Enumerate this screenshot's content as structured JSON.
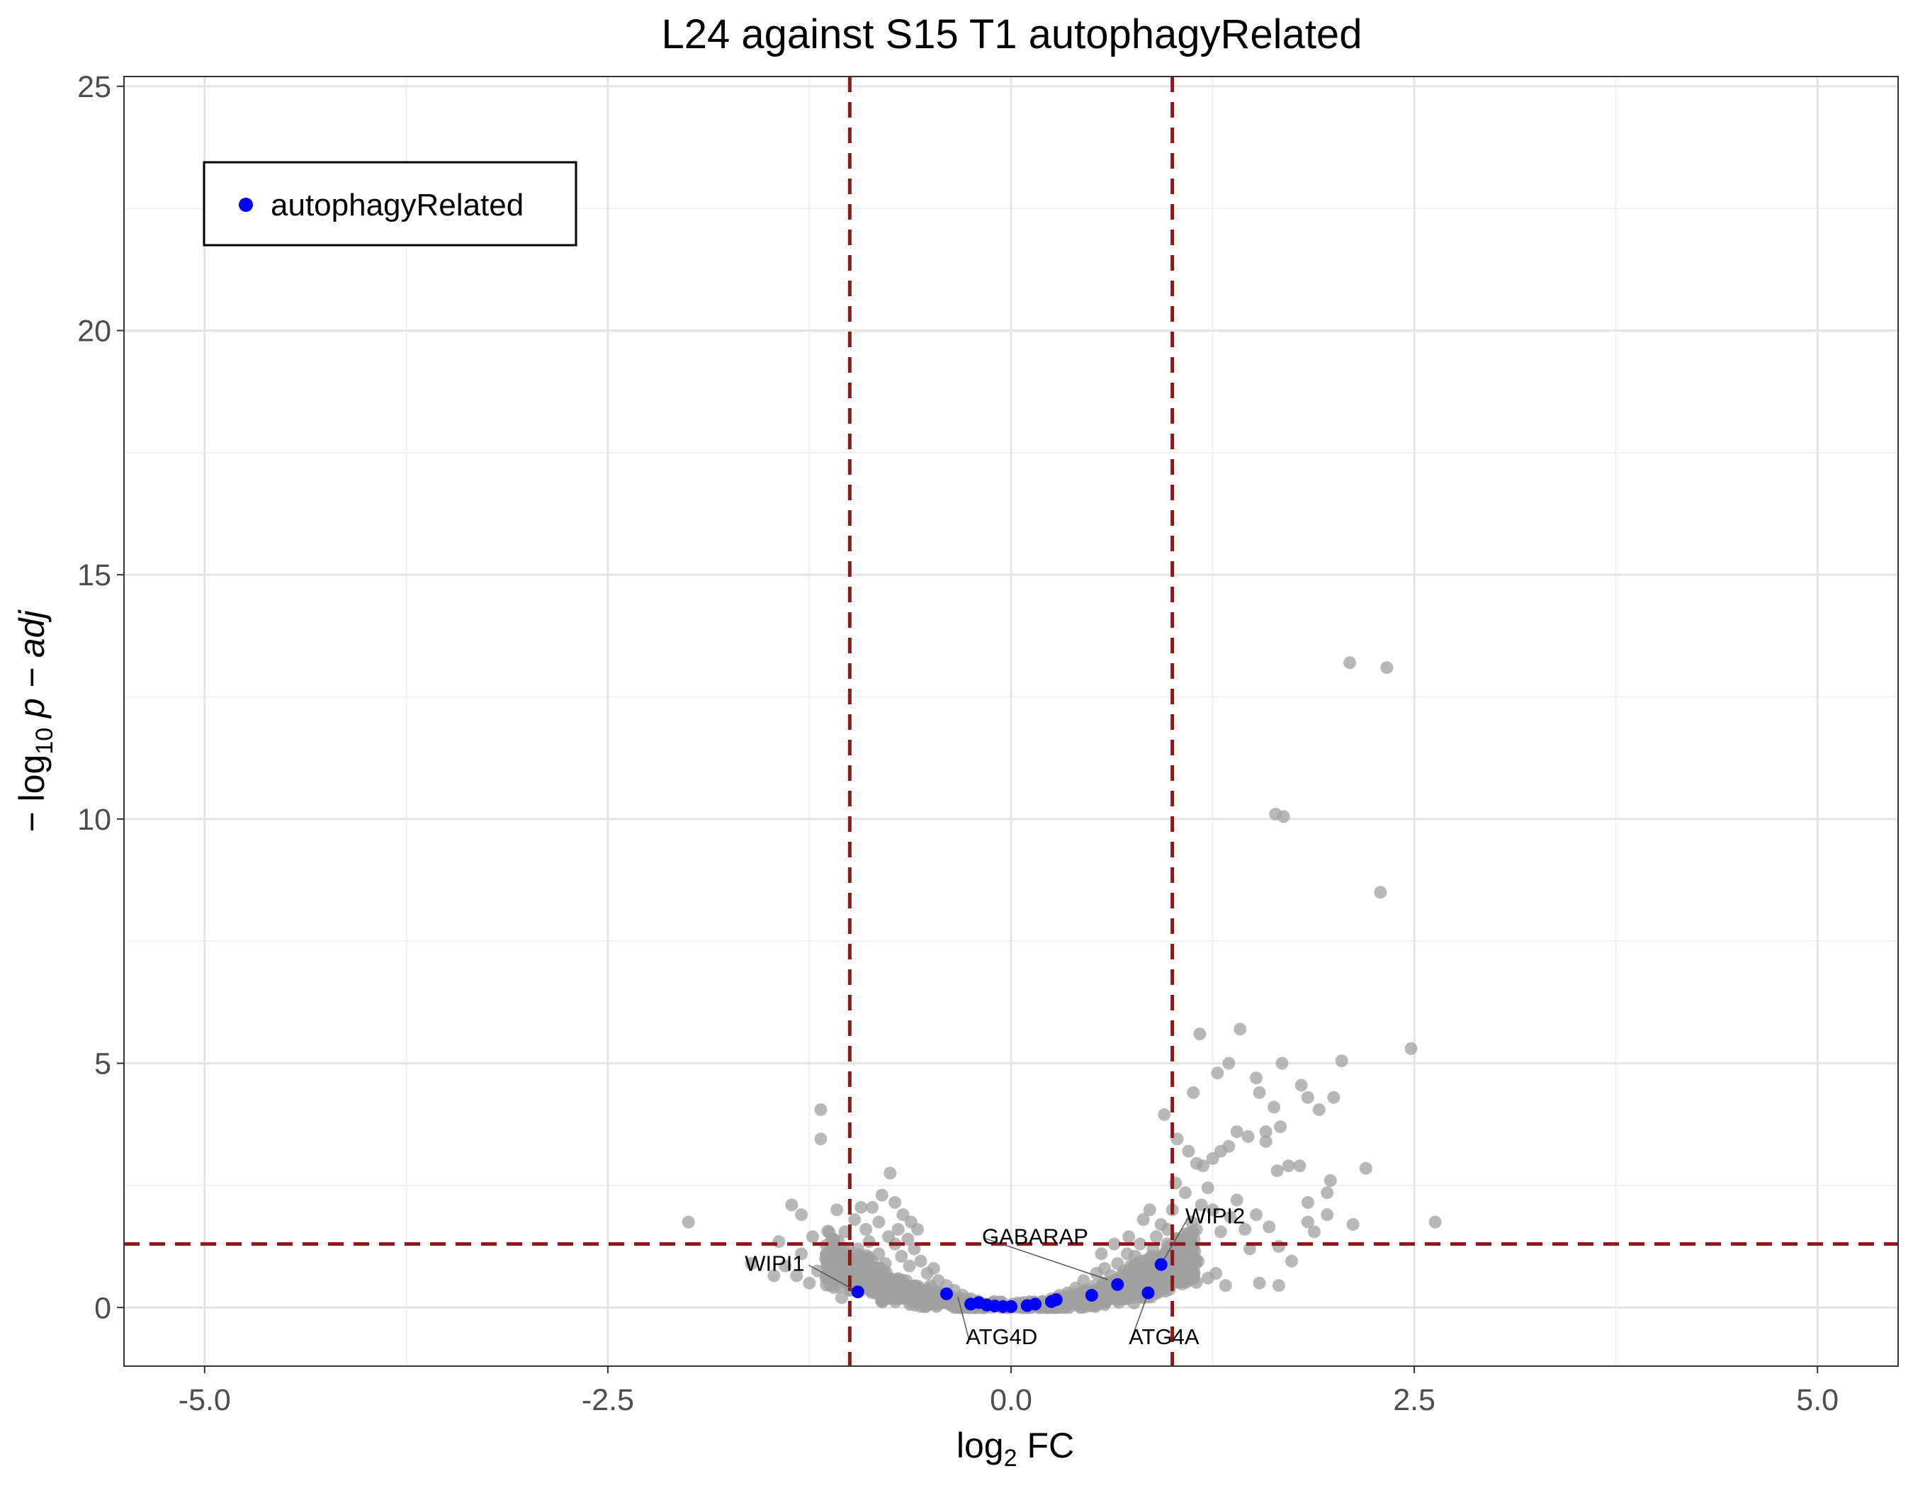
{
  "chart_data": {
    "type": "scatter",
    "title": "L24 against S15 T1 autophagyRelated",
    "xlabel": {
      "prefix": "log",
      "sub": "2",
      "suffix": " FC"
    },
    "ylabel": {
      "prefix": "− log",
      "sub": "10",
      "italic": " p − adj"
    },
    "xlim": [
      -5.5,
      5.5
    ],
    "ylim": [
      -1.2,
      25.2
    ],
    "xticks": [
      -5,
      -2.5,
      0,
      2.5,
      5
    ],
    "xtick_labels": [
      "-5.0",
      "-2.5",
      "0.0",
      "2.5",
      "5.0"
    ],
    "yticks": [
      0,
      5,
      10,
      15,
      20,
      25
    ],
    "ytick_labels": [
      "0",
      "5",
      "10",
      "15",
      "20",
      "25"
    ],
    "grid": true,
    "thresholds": {
      "fc_cutoffs": [
        -1,
        1
      ],
      "padj_cutoff": 1.3,
      "line_color": "#8b1a1a"
    },
    "background_color": "#a0a0a0",
    "highlight_color": "#0000ff",
    "legend": {
      "position": "top-left",
      "label": "autophagyRelated"
    },
    "background_points": [
      [
        2.1,
        13.2
      ],
      [
        2.33,
        13.1
      ],
      [
        1.64,
        10.1
      ],
      [
        1.69,
        10.05
      ],
      [
        2.29,
        8.5
      ],
      [
        1.17,
        5.6
      ],
      [
        1.42,
        5.7
      ],
      [
        1.35,
        5.0
      ],
      [
        1.28,
        4.8
      ],
      [
        1.13,
        4.4
      ],
      [
        1.52,
        4.7
      ],
      [
        1.68,
        5.0
      ],
      [
        1.8,
        4.55
      ],
      [
        1.84,
        4.3
      ],
      [
        1.91,
        4.05
      ],
      [
        2.0,
        4.3
      ],
      [
        2.05,
        5.05
      ],
      [
        2.48,
        5.3
      ],
      [
        1.54,
        4.4
      ],
      [
        1.63,
        4.1
      ],
      [
        1.67,
        3.7
      ],
      [
        1.58,
        3.4
      ],
      [
        1.47,
        3.5
      ],
      [
        1.4,
        3.6
      ],
      [
        1.35,
        3.3
      ],
      [
        1.3,
        3.2
      ],
      [
        1.25,
        3.05
      ],
      [
        1.15,
        2.95
      ],
      [
        1.19,
        2.9
      ],
      [
        1.1,
        3.2
      ],
      [
        1.03,
        3.45
      ],
      [
        0.95,
        3.95
      ],
      [
        1.58,
        3.6
      ],
      [
        1.65,
        2.8
      ],
      [
        1.72,
        2.9
      ],
      [
        1.79,
        2.9
      ],
      [
        1.98,
        2.6
      ],
      [
        1.96,
        2.35
      ],
      [
        2.2,
        2.85
      ],
      [
        2.12,
        1.7
      ],
      [
        2.63,
        1.75
      ],
      [
        1.84,
        2.15
      ],
      [
        1.88,
        1.55
      ],
      [
        1.96,
        1.9
      ],
      [
        1.84,
        1.75
      ],
      [
        1.6,
        1.65
      ],
      [
        1.52,
        1.9
      ],
      [
        1.45,
        1.6
      ],
      [
        1.4,
        2.2
      ],
      [
        1.36,
        1.85
      ],
      [
        1.22,
        2.45
      ],
      [
        1.18,
        2.1
      ],
      [
        1.08,
        2.35
      ],
      [
        1.02,
        2.55
      ],
      [
        1.25,
        2.0
      ],
      [
        1.3,
        1.55
      ],
      [
        1.48,
        1.2
      ],
      [
        1.66,
        1.25
      ],
      [
        1.74,
        0.95
      ],
      [
        1.54,
        0.5
      ],
      [
        1.66,
        0.45
      ],
      [
        1.33,
        0.45
      ],
      [
        1.27,
        0.7
      ],
      [
        1.22,
        0.6
      ],
      [
        1.16,
        0.95
      ],
      [
        1.05,
        1.35
      ],
      [
        0.97,
        1.6
      ],
      [
        1.12,
        1.75
      ],
      [
        1.0,
        2.0
      ],
      [
        0.86,
        2.0
      ],
      [
        0.82,
        1.8
      ],
      [
        0.93,
        1.7
      ],
      [
        0.9,
        1.45
      ],
      [
        0.8,
        1.3
      ],
      [
        0.73,
        1.45
      ],
      [
        0.64,
        1.3
      ],
      [
        0.56,
        1.1
      ],
      [
        0.72,
        1.1
      ],
      [
        0.66,
        0.9
      ],
      [
        0.58,
        0.8
      ],
      [
        0.53,
        0.7
      ],
      [
        0.45,
        0.55
      ],
      [
        0.4,
        0.4
      ],
      [
        0.35,
        0.3
      ],
      [
        0.3,
        0.25
      ],
      [
        0.25,
        0.18
      ],
      [
        0.2,
        0.12
      ],
      [
        0.15,
        0.08
      ],
      [
        0.1,
        0.04
      ],
      [
        0.05,
        0.02
      ],
      [
        0.7,
        0.5
      ],
      [
        0.78,
        0.65
      ],
      [
        0.85,
        0.75
      ],
      [
        0.92,
        0.85
      ],
      [
        0.98,
        0.9
      ],
      [
        0.6,
        0.35
      ],
      [
        0.68,
        0.25
      ],
      [
        0.76,
        0.3
      ],
      [
        0.82,
        0.2
      ],
      [
        0.9,
        0.45
      ],
      [
        0.95,
        0.6
      ],
      [
        1.03,
        0.75
      ],
      [
        1.08,
        0.55
      ],
      [
        0.49,
        0.25
      ],
      [
        0.57,
        0.5
      ],
      [
        0.62,
        0.65
      ],
      [
        0.74,
        0.85
      ],
      [
        0.87,
        1.05
      ],
      [
        0.99,
        1.15
      ],
      [
        1.1,
        1.05
      ],
      [
        0.42,
        0.2
      ],
      [
        0.33,
        0.12
      ],
      [
        0.46,
        0.35
      ],
      [
        0.52,
        0.45
      ],
      [
        0.66,
        0.15
      ],
      [
        0.8,
        0.95
      ],
      [
        0.88,
        1.2
      ],
      [
        0.94,
        1.05
      ],
      [
        0.77,
        1.05
      ],
      [
        0.7,
        0.75
      ],
      [
        -1.18,
        4.05
      ],
      [
        -1.18,
        3.45
      ],
      [
        -2.0,
        1.75
      ],
      [
        -1.36,
        2.1
      ],
      [
        -1.3,
        1.9
      ],
      [
        -1.23,
        1.45
      ],
      [
        -1.08,
        2.0
      ],
      [
        -0.93,
        2.05
      ],
      [
        -0.86,
        2.05
      ],
      [
        -0.75,
        2.75
      ],
      [
        -0.8,
        2.3
      ],
      [
        -0.72,
        2.15
      ],
      [
        -0.67,
        1.9
      ],
      [
        -0.62,
        1.75
      ],
      [
        -0.58,
        1.6
      ],
      [
        -0.82,
        1.75
      ],
      [
        -0.9,
        1.6
      ],
      [
        -0.97,
        1.8
      ],
      [
        -1.03,
        1.55
      ],
      [
        -1.1,
        1.4
      ],
      [
        -1.44,
        1.35
      ],
      [
        -1.47,
        0.65
      ],
      [
        -1.61,
        0.9
      ],
      [
        -1.4,
        0.85
      ],
      [
        -1.3,
        1.1
      ],
      [
        -1.2,
        0.75
      ],
      [
        -1.15,
        1.0
      ],
      [
        -1.08,
        0.6
      ],
      [
        -1.02,
        0.85
      ],
      [
        -0.95,
        1.2
      ],
      [
        -0.88,
        1.35
      ],
      [
        -0.82,
        1.1
      ],
      [
        -0.78,
        0.9
      ],
      [
        -0.72,
        1.3
      ],
      [
        -0.68,
        1.05
      ],
      [
        -0.63,
        0.85
      ],
      [
        -0.6,
        1.2
      ],
      [
        -0.56,
        0.95
      ],
      [
        -0.52,
        0.7
      ],
      [
        -0.48,
        0.8
      ],
      [
        -0.45,
        0.55
      ],
      [
        -0.4,
        0.45
      ],
      [
        -0.35,
        0.35
      ],
      [
        -0.3,
        0.25
      ],
      [
        -0.25,
        0.18
      ],
      [
        -0.2,
        0.12
      ],
      [
        -0.15,
        0.07
      ],
      [
        -0.1,
        0.04
      ],
      [
        -0.05,
        0.02
      ],
      [
        -0.9,
        0.5
      ],
      [
        -0.85,
        0.7
      ],
      [
        -0.8,
        0.45
      ],
      [
        -0.75,
        0.6
      ],
      [
        -0.7,
        0.35
      ],
      [
        -0.65,
        0.55
      ],
      [
        -0.6,
        0.4
      ],
      [
        -0.55,
        0.3
      ],
      [
        -0.5,
        0.45
      ],
      [
        -0.47,
        0.25
      ],
      [
        -1.0,
        0.35
      ],
      [
        -1.05,
        0.2
      ],
      [
        -0.98,
        0.65
      ],
      [
        -0.93,
        0.85
      ],
      [
        -1.12,
        0.45
      ],
      [
        -1.25,
        0.5
      ],
      [
        -1.33,
        0.65
      ],
      [
        -0.76,
        1.45
      ],
      [
        -0.7,
        1.6
      ],
      [
        -0.64,
        1.4
      ],
      [
        -0.86,
        0.95
      ]
    ],
    "highlight_points": [
      [
        -0.95,
        0.32
      ],
      [
        -0.4,
        0.28
      ],
      [
        -0.25,
        0.07
      ],
      [
        -0.2,
        0.1
      ],
      [
        -0.15,
        0.05
      ],
      [
        -0.1,
        0.03
      ],
      [
        -0.05,
        0.02
      ],
      [
        0.0,
        0.02
      ],
      [
        0.1,
        0.04
      ],
      [
        0.15,
        0.07
      ],
      [
        0.25,
        0.12
      ],
      [
        0.28,
        0.16
      ],
      [
        0.5,
        0.25
      ],
      [
        0.66,
        0.47
      ],
      [
        0.85,
        0.3
      ],
      [
        0.93,
        0.88
      ]
    ],
    "annotations": [
      {
        "label": "WIPI1",
        "x": -0.95,
        "y": 0.32,
        "text_x": -1.28,
        "text_y": 0.75,
        "anchor": "end"
      },
      {
        "label": "ATG4D",
        "x": -0.33,
        "y": 0.22,
        "text_x": -0.28,
        "text_y": -0.75,
        "anchor": "start"
      },
      {
        "label": "GABARAP",
        "x": 0.6,
        "y": 0.57,
        "text_x": -0.18,
        "text_y": 1.3,
        "anchor": "start"
      },
      {
        "label": "WIPI2",
        "x": 0.93,
        "y": 0.88,
        "text_x": 1.08,
        "text_y": 1.72,
        "anchor": "start"
      },
      {
        "label": "ATG4A",
        "x": 0.85,
        "y": 0.3,
        "text_x": 0.73,
        "text_y": -0.75,
        "anchor": "start"
      }
    ]
  }
}
